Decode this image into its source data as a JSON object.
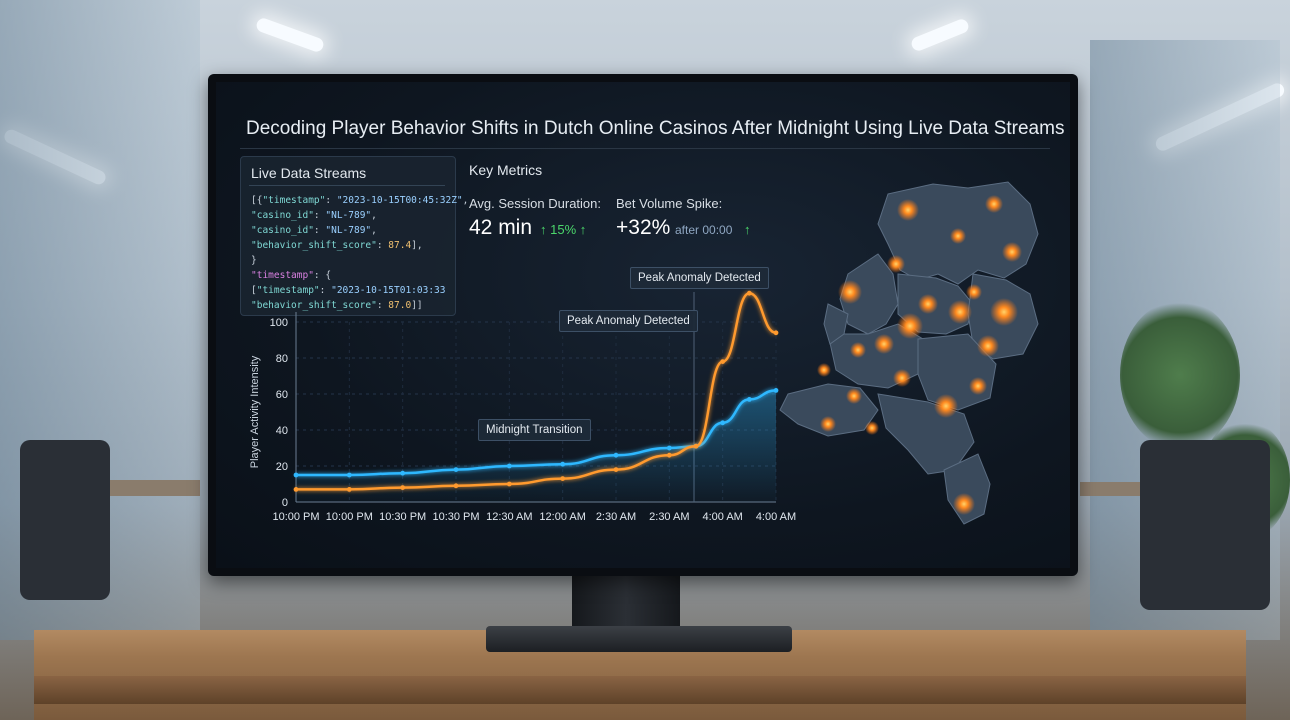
{
  "title": "Decoding Player Behavior Shifts in Dutch Online Casinos After Midnight Using Live Data Streams",
  "streams": {
    "title": "Live Data Streams",
    "lines": [
      [
        {
          "t": "p",
          "v": "[{"
        },
        {
          "t": "k",
          "v": "\"timestamp\""
        },
        {
          "t": "p",
          "v": ": "
        },
        {
          "t": "s",
          "v": "\"2023-10-15T00:45:32Z\""
        },
        {
          "t": "p",
          "v": ","
        }
      ],
      [
        {
          "t": "p",
          "v": "  "
        },
        {
          "t": "k",
          "v": "\"casino_id\""
        },
        {
          "t": "p",
          "v": ": "
        },
        {
          "t": "s",
          "v": "\"NL-789\""
        },
        {
          "t": "p",
          "v": ","
        }
      ],
      [
        {
          "t": "p",
          "v": "  "
        },
        {
          "t": "k",
          "v": "\"casino_id\""
        },
        {
          "t": "p",
          "v": ": "
        },
        {
          "t": "s",
          "v": "\"NL-789\""
        },
        {
          "t": "p",
          "v": ","
        }
      ],
      [
        {
          "t": "p",
          "v": "  "
        },
        {
          "t": "k",
          "v": "\"behavior_shift_score\""
        },
        {
          "t": "p",
          "v": ": "
        },
        {
          "t": "n",
          "v": "87.4"
        },
        {
          "t": "p",
          "v": "],"
        }
      ],
      [
        {
          "t": "p",
          "v": " }"
        }
      ],
      [
        {
          "t": "kp",
          "v": "\"timestamp\""
        },
        {
          "t": "p",
          "v": ": {"
        }
      ],
      [
        {
          "t": "p",
          "v": " ["
        },
        {
          "t": "k",
          "v": "\"timestamp\""
        },
        {
          "t": "p",
          "v": ": "
        },
        {
          "t": "s",
          "v": "\"2023-10-15T01:03:33"
        }
      ],
      [
        {
          "t": "p",
          "v": "  "
        },
        {
          "t": "k",
          "v": "\"behavior_shift_score\""
        },
        {
          "t": "p",
          "v": ": "
        },
        {
          "t": "n",
          "v": "87.0"
        },
        {
          "t": "p",
          "v": "]]"
        }
      ]
    ]
  },
  "metrics": {
    "title": "Key Metrics",
    "session": {
      "label": "Avg. Session Duration:",
      "value": "42 min",
      "delta": "↑ 15% ↑"
    },
    "bet": {
      "label": "Bet Volume Spike:",
      "value": "+32%",
      "sub": "after 00:00",
      "delta": "↑"
    }
  },
  "annotations": {
    "midnight": "Midnight Transition",
    "peak1": "Peak Anomaly Detected",
    "peak2": "Peak Anomaly Detected"
  },
  "colors": {
    "cyan": "#2fb8ff",
    "orange": "#ff9a2e",
    "hotspot": "#ff8a1f"
  },
  "chart_data": {
    "type": "line",
    "ylabel": "Player Activity Intensity",
    "ylim": [
      0,
      100
    ],
    "yticks": [
      0,
      20,
      40,
      60,
      80,
      100
    ],
    "xticklabels": [
      "10:00 PM",
      "10:00 PM",
      "10:30 PM",
      "10:30 PM",
      "12:30 AM",
      "12:00 AM",
      "2:30 AM",
      "2:30 AM",
      "4:00 AM",
      "4:00 AM"
    ],
    "series": [
      {
        "color": "#2fb8ff",
        "x": [
          0,
          1,
          2,
          3,
          4,
          5,
          6,
          7,
          7.5,
          8,
          8.5,
          9
        ],
        "values": [
          15,
          15,
          16,
          18,
          20,
          21,
          26,
          30,
          31,
          44,
          57,
          62
        ]
      },
      {
        "color": "#ff9a2e",
        "x": [
          0,
          1,
          2,
          3,
          4,
          5,
          6,
          7,
          7.5,
          8,
          8.5,
          9
        ],
        "values": [
          7,
          7,
          8,
          9,
          10,
          13,
          18,
          26,
          31,
          78,
          116,
          94
        ]
      }
    ]
  }
}
